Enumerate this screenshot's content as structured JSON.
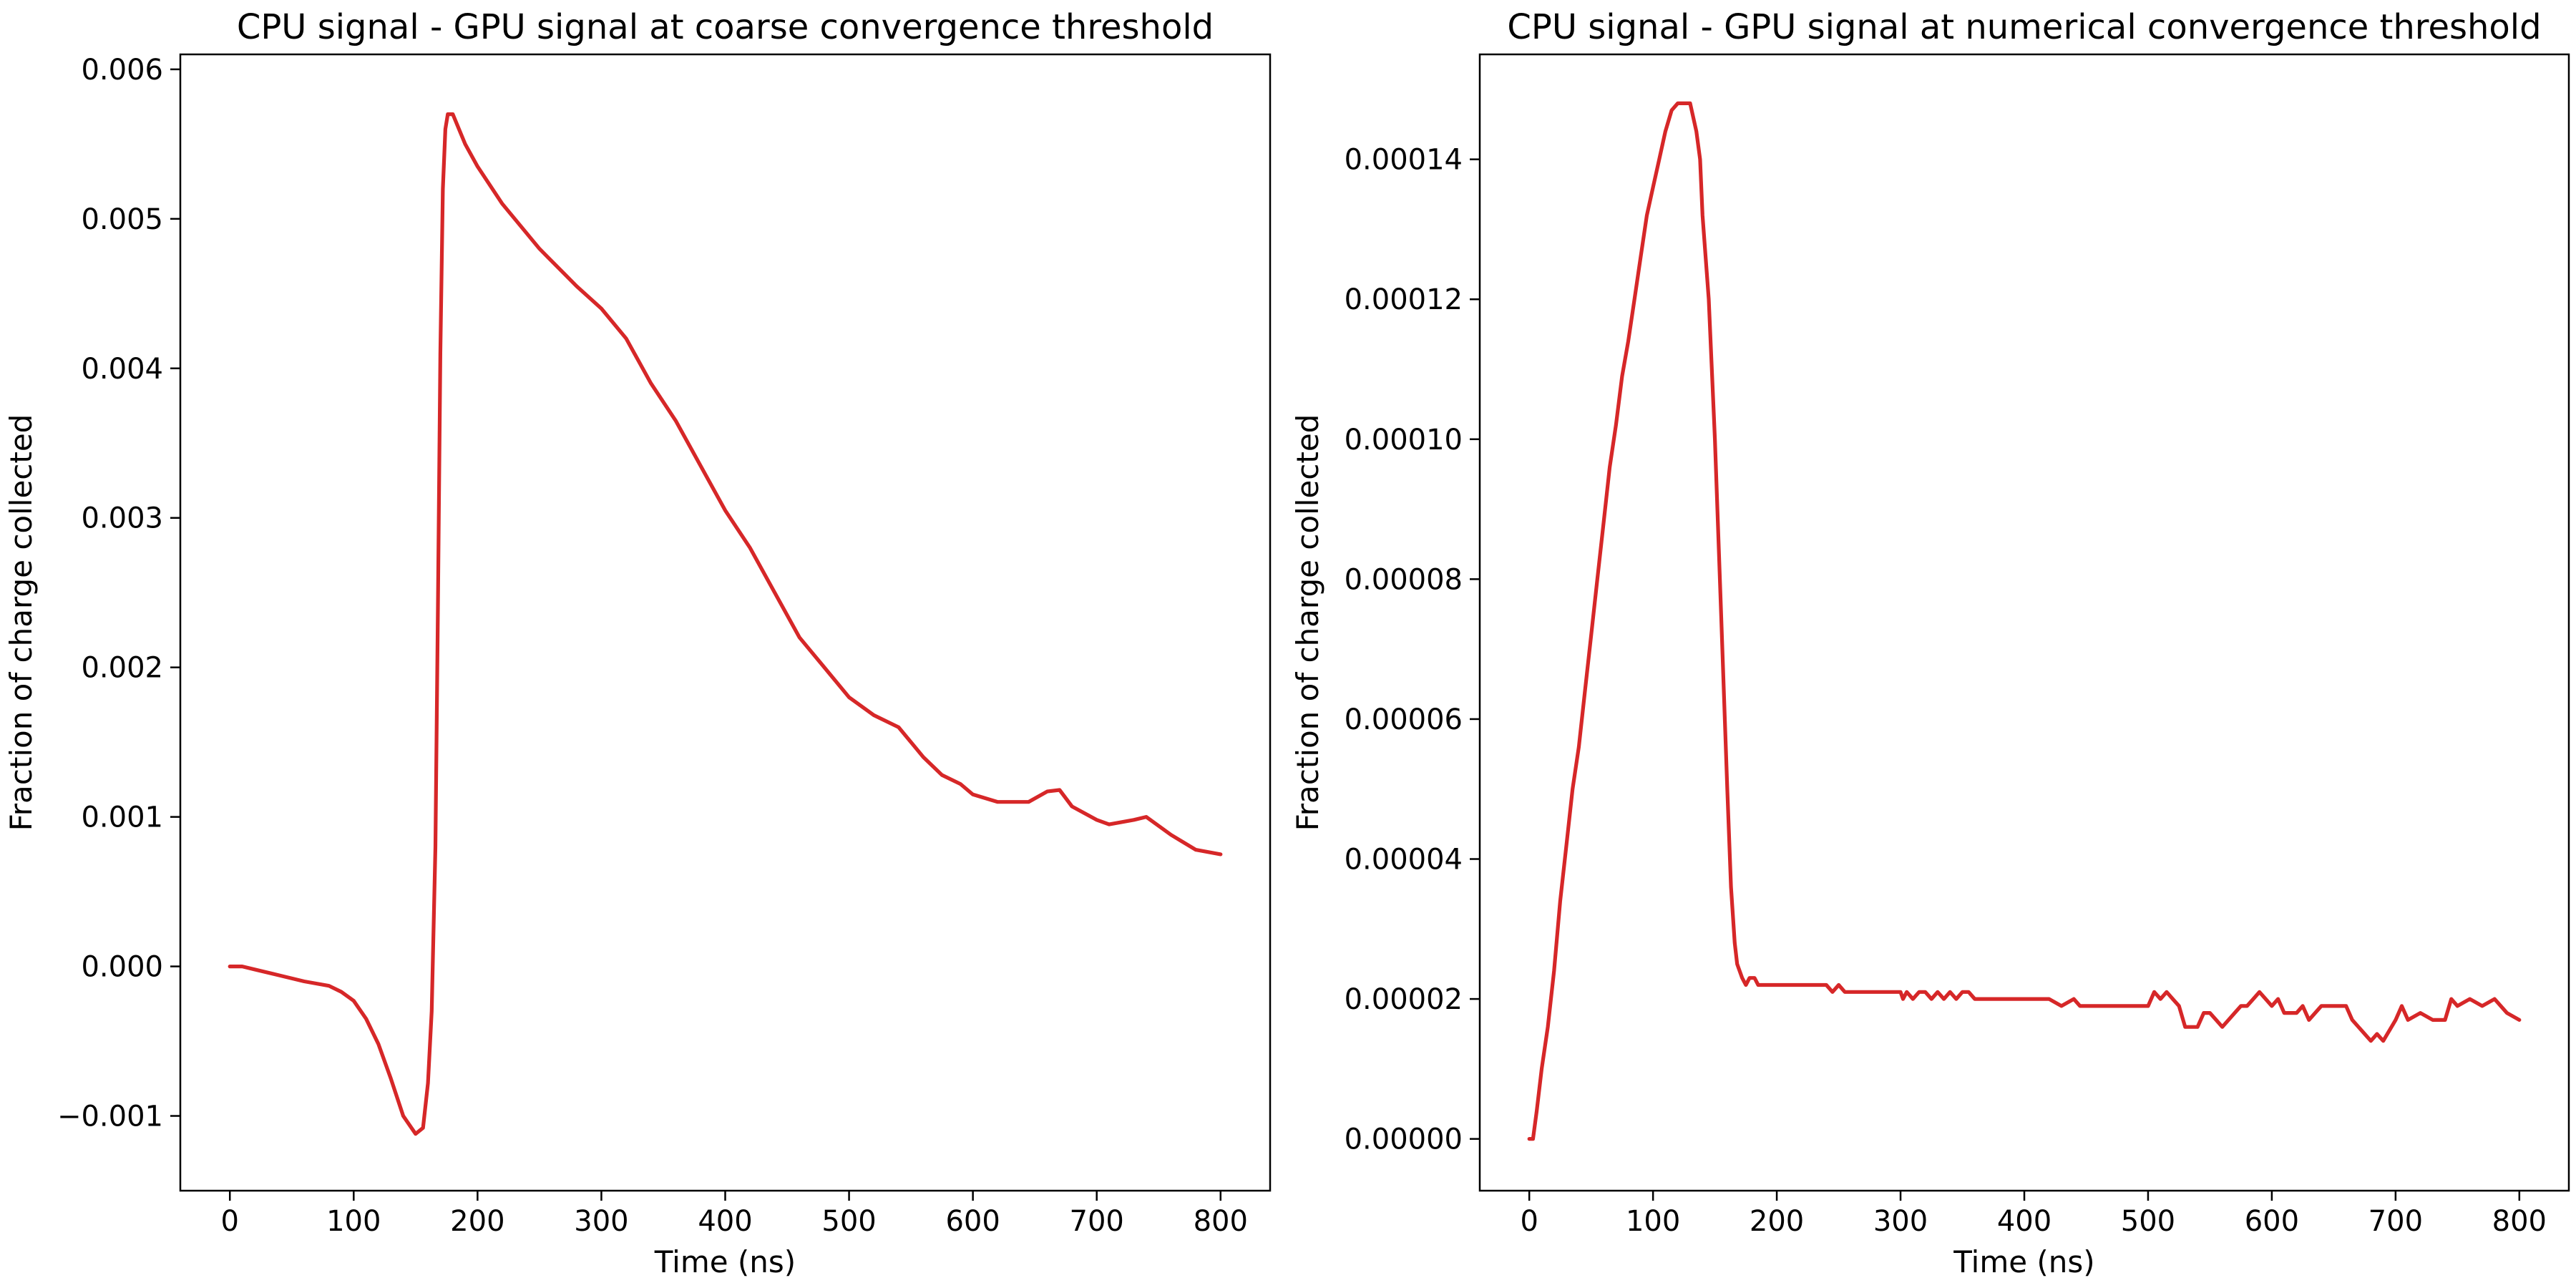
{
  "chart_data": [
    {
      "type": "line",
      "title": "CPU signal - GPU signal at coarse convergence threshold",
      "xlabel": "Time (ns)",
      "ylabel": "Fraction of charge collected",
      "xlim": [
        -40,
        840
      ],
      "ylim": [
        -0.0015,
        0.0061
      ],
      "x_ticks": [
        0,
        100,
        200,
        300,
        400,
        500,
        600,
        700,
        800
      ],
      "x_tick_labels": [
        "0",
        "100",
        "200",
        "300",
        "400",
        "500",
        "600",
        "700",
        "800"
      ],
      "y_ticks": [
        -0.001,
        0.0,
        0.001,
        0.002,
        0.003,
        0.004,
        0.005,
        0.006
      ],
      "y_tick_labels": [
        "−0.001",
        "0.000",
        "0.001",
        "0.002",
        "0.003",
        "0.004",
        "0.005",
        "0.006"
      ],
      "grid": false,
      "series": [
        {
          "color": "#d62728",
          "x": [
            0,
            10,
            20,
            40,
            60,
            80,
            90,
            100,
            110,
            120,
            130,
            140,
            150,
            156,
            160,
            163,
            166,
            168,
            170,
            172,
            174,
            176,
            180,
            190,
            200,
            220,
            250,
            280,
            300,
            320,
            340,
            360,
            380,
            400,
            420,
            440,
            460,
            480,
            500,
            520,
            540,
            560,
            575,
            590,
            600,
            620,
            645,
            660,
            670,
            680,
            700,
            710,
            730,
            740,
            760,
            780,
            800
          ],
          "y": [
            0.0,
            0.0,
            -2e-05,
            -6e-05,
            -0.0001,
            -0.00013,
            -0.00017,
            -0.00023,
            -0.00035,
            -0.00052,
            -0.00075,
            -0.001,
            -0.00112,
            -0.00108,
            -0.00078,
            -0.0003,
            0.0008,
            0.0024,
            0.0041,
            0.0052,
            0.0056,
            0.0057,
            0.0057,
            0.0055,
            0.00535,
            0.0051,
            0.0048,
            0.00455,
            0.0044,
            0.0042,
            0.0039,
            0.00365,
            0.00335,
            0.00305,
            0.0028,
            0.0025,
            0.0022,
            0.002,
            0.0018,
            0.00168,
            0.0016,
            0.0014,
            0.00128,
            0.00122,
            0.00115,
            0.0011,
            0.0011,
            0.00117,
            0.00118,
            0.00107,
            0.00098,
            0.00095,
            0.00098,
            0.001,
            0.00088,
            0.00078,
            0.00075
          ]
        }
      ]
    },
    {
      "type": "line",
      "title": "CPU signal - GPU signal at numerical convergence threshold",
      "xlabel": "Time (ns)",
      "ylabel": "Fraction of charge collected",
      "xlim": [
        -40,
        840
      ],
      "ylim": [
        -7.4e-06,
        0.000155
      ],
      "x_ticks": [
        0,
        100,
        200,
        300,
        400,
        500,
        600,
        700,
        800
      ],
      "x_tick_labels": [
        "0",
        "100",
        "200",
        "300",
        "400",
        "500",
        "600",
        "700",
        "800"
      ],
      "y_ticks": [
        0.0,
        2e-05,
        4e-05,
        6e-05,
        8e-05,
        0.0001,
        0.00012,
        0.00014
      ],
      "y_tick_labels": [
        "0.00000",
        "0.00002",
        "0.00004",
        "0.00006",
        "0.00008",
        "0.00010",
        "0.00012",
        "0.00014"
      ],
      "grid": false,
      "series": [
        {
          "color": "#d62728",
          "x": [
            0,
            3,
            6,
            10,
            15,
            20,
            25,
            30,
            35,
            40,
            45,
            50,
            55,
            60,
            65,
            70,
            75,
            80,
            85,
            90,
            95,
            100,
            105,
            110,
            115,
            120,
            125,
            130,
            135,
            138,
            140,
            145,
            150,
            155,
            160,
            163,
            166,
            168,
            170,
            172,
            175,
            178,
            182,
            185,
            190,
            195,
            200,
            210,
            220,
            240,
            245,
            250,
            255,
            260,
            270,
            280,
            300,
            302,
            305,
            310,
            315,
            320,
            325,
            330,
            335,
            340,
            345,
            350,
            355,
            360,
            370,
            380,
            390,
            400,
            410,
            420,
            430,
            440,
            445,
            450,
            460,
            470,
            480,
            490,
            500,
            505,
            510,
            515,
            520,
            525,
            530,
            540,
            545,
            550,
            555,
            560,
            570,
            575,
            580,
            585,
            590,
            595,
            600,
            605,
            610,
            620,
            625,
            630,
            640,
            650,
            660,
            665,
            670,
            680,
            685,
            690,
            700,
            705,
            710,
            720,
            730,
            740,
            745,
            750,
            760,
            770,
            780,
            790,
            800
          ],
          "y": [
            0.0,
            0.0,
            4e-06,
            1e-05,
            1.6e-05,
            2.4e-05,
            3.4e-05,
            4.2e-05,
            5e-05,
            5.6e-05,
            6.4e-05,
            7.2e-05,
            8e-05,
            8.8e-05,
            9.6e-05,
            0.000102,
            0.000109,
            0.000114,
            0.00012,
            0.000126,
            0.000132,
            0.000136,
            0.00014,
            0.000144,
            0.000147,
            0.000148,
            0.000148,
            0.000148,
            0.000144,
            0.00014,
            0.000132,
            0.00012,
            0.0001,
            7.5e-05,
            5e-05,
            3.6e-05,
            2.8e-05,
            2.5e-05,
            2.4e-05,
            2.3e-05,
            2.2e-05,
            2.3e-05,
            2.3e-05,
            2.2e-05,
            2.2e-05,
            2.2e-05,
            2.2e-05,
            2.2e-05,
            2.2e-05,
            2.2e-05,
            2.1e-05,
            2.2e-05,
            2.1e-05,
            2.1e-05,
            2.1e-05,
            2.1e-05,
            2.1e-05,
            2e-05,
            2.1e-05,
            2e-05,
            2.1e-05,
            2.1e-05,
            2e-05,
            2.1e-05,
            2e-05,
            2.1e-05,
            2e-05,
            2.1e-05,
            2.1e-05,
            2e-05,
            2e-05,
            2e-05,
            2e-05,
            2e-05,
            2e-05,
            2e-05,
            1.9e-05,
            2e-05,
            1.9e-05,
            1.9e-05,
            1.9e-05,
            1.9e-05,
            1.9e-05,
            1.9e-05,
            1.9e-05,
            2.1e-05,
            2e-05,
            2.1e-05,
            2e-05,
            1.9e-05,
            1.6e-05,
            1.6e-05,
            1.8e-05,
            1.8e-05,
            1.7e-05,
            1.6e-05,
            1.8e-05,
            1.9e-05,
            1.9e-05,
            2e-05,
            2.1e-05,
            2e-05,
            1.9e-05,
            2e-05,
            1.8e-05,
            1.8e-05,
            1.9e-05,
            1.7e-05,
            1.9e-05,
            1.9e-05,
            1.9e-05,
            1.7e-05,
            1.6e-05,
            1.4e-05,
            1.5e-05,
            1.4e-05,
            1.7e-05,
            1.9e-05,
            1.7e-05,
            1.8e-05,
            1.7e-05,
            1.7e-05,
            2e-05,
            1.9e-05,
            2e-05,
            1.9e-05,
            2e-05,
            1.8e-05,
            1.7e-05
          ]
        }
      ]
    }
  ]
}
